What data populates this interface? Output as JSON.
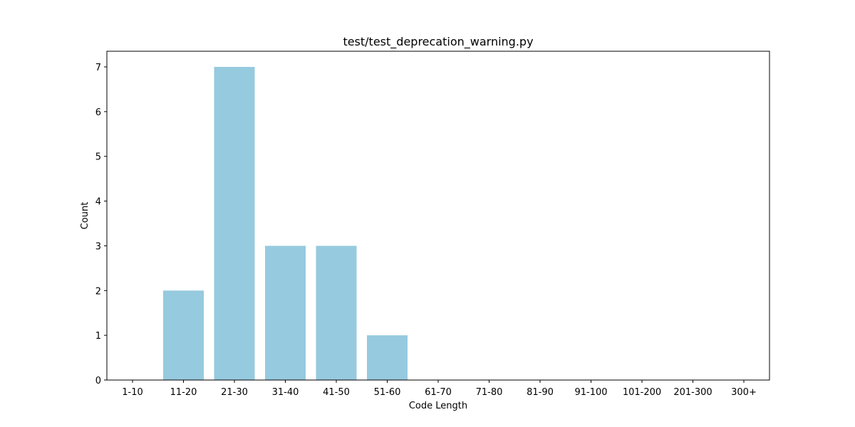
{
  "chart_data": {
    "type": "bar",
    "title": "test/test_deprecation_warning.py",
    "xlabel": "Code Length",
    "ylabel": "Count",
    "categories": [
      "1-10",
      "11-20",
      "21-30",
      "31-40",
      "41-50",
      "51-60",
      "61-70",
      "71-80",
      "81-90",
      "91-100",
      "101-200",
      "201-300",
      "300+"
    ],
    "values": [
      0,
      2,
      7,
      3,
      3,
      1,
      0,
      0,
      0,
      0,
      0,
      0,
      0
    ],
    "ylim": [
      0,
      7.35
    ],
    "yticks": [
      0,
      1,
      2,
      3,
      4,
      5,
      6,
      7
    ],
    "bar_color": "#96cadf",
    "grid": false,
    "legend": "none"
  }
}
